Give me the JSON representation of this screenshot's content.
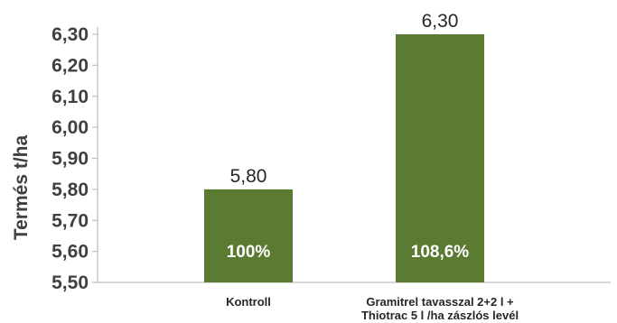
{
  "chart_data": {
    "type": "bar",
    "title": "",
    "xlabel": "",
    "ylabel": "Termés t/ha",
    "ylim": [
      5.5,
      6.3
    ],
    "yticks": [
      "5,50",
      "5,60",
      "5,70",
      "5,80",
      "5,90",
      "6,00",
      "6,10",
      "6,20",
      "6,30"
    ],
    "categories": [
      [
        "Kontroll"
      ],
      [
        "Gramitrel tavasszal 2+2 l  +",
        "Thiotrac 5 l /ha zászlós levél"
      ]
    ],
    "values": [
      5.8,
      6.3
    ],
    "value_labels": [
      "5,80",
      "6,30"
    ],
    "inner_labels": [
      "100%",
      "108,6%"
    ],
    "grid": false,
    "bar_color": "#5b7a32",
    "axis_color": "#bfbfbf"
  }
}
